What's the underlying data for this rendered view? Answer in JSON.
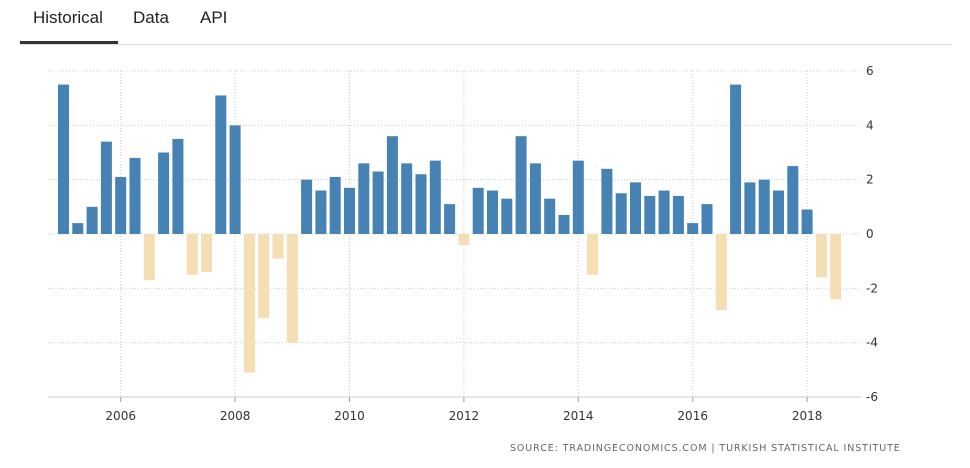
{
  "tabs": [
    {
      "label": "Historical",
      "active": true
    },
    {
      "label": "Data",
      "active": false
    },
    {
      "label": "API",
      "active": false
    }
  ],
  "source_text": "SOURCE: TRADINGECONOMICS.COM  |  TURKISH STATISTICAL INSTITUTE",
  "colors": {
    "positive": "#4682b4",
    "negative": "#f5deb3",
    "grid": "#cccccc"
  },
  "chart_data": {
    "type": "bar",
    "x_tick_labels": [
      "2006",
      "2008",
      "2010",
      "2012",
      "2014",
      "2016",
      "2018"
    ],
    "y_tick_labels": [
      "6",
      "4",
      "2",
      "0",
      "-2",
      "-4",
      "-6"
    ],
    "ylim": [
      -6,
      6
    ],
    "y_ticks": [
      6,
      4,
      2,
      0,
      -2,
      -4,
      -6
    ],
    "x_ticks": [
      2006,
      2008,
      2010,
      2012,
      2014,
      2016,
      2018
    ],
    "grid": true,
    "y_axis_position": "right",
    "series": [
      {
        "x": [
          2005.0,
          2005.25,
          2005.5,
          2005.75,
          2006.0,
          2006.25,
          2006.5,
          2006.75,
          2007.0,
          2007.25,
          2007.5,
          2007.75,
          2008.0,
          2008.25,
          2008.5,
          2008.75,
          2009.0,
          2009.25,
          2009.5,
          2009.75,
          2010.0,
          2010.25,
          2010.5,
          2010.75,
          2011.0,
          2011.25,
          2011.5,
          2011.75,
          2012.0,
          2012.25,
          2012.5,
          2012.75,
          2013.0,
          2013.25,
          2013.5,
          2013.75,
          2014.0,
          2014.25,
          2014.5,
          2014.75,
          2015.0,
          2015.25,
          2015.5,
          2015.75,
          2016.0,
          2016.25,
          2016.5,
          2016.75,
          2017.0,
          2017.25,
          2017.5,
          2017.75,
          2018.0,
          2018.25,
          2018.5,
          2018.75
        ],
        "values": [
          5.5,
          0.4,
          1.0,
          3.4,
          2.1,
          2.8,
          -1.7,
          3.0,
          3.5,
          -1.5,
          -1.4,
          5.1,
          4.0,
          -5.1,
          -3.1,
          -0.9,
          -4.0,
          2.0,
          1.6,
          2.1,
          1.7,
          2.6,
          2.3,
          3.6,
          2.6,
          2.2,
          2.7,
          1.1,
          -0.4,
          1.7,
          1.6,
          1.3,
          3.6,
          2.6,
          1.3,
          0.7,
          2.7,
          -1.5,
          2.4,
          1.5,
          1.9,
          1.4,
          1.6,
          1.4,
          0.4,
          1.1,
          -2.8,
          5.5,
          1.9,
          2.0,
          1.6,
          2.5,
          0.9,
          -1.6,
          -2.4,
          null
        ]
      }
    ]
  }
}
